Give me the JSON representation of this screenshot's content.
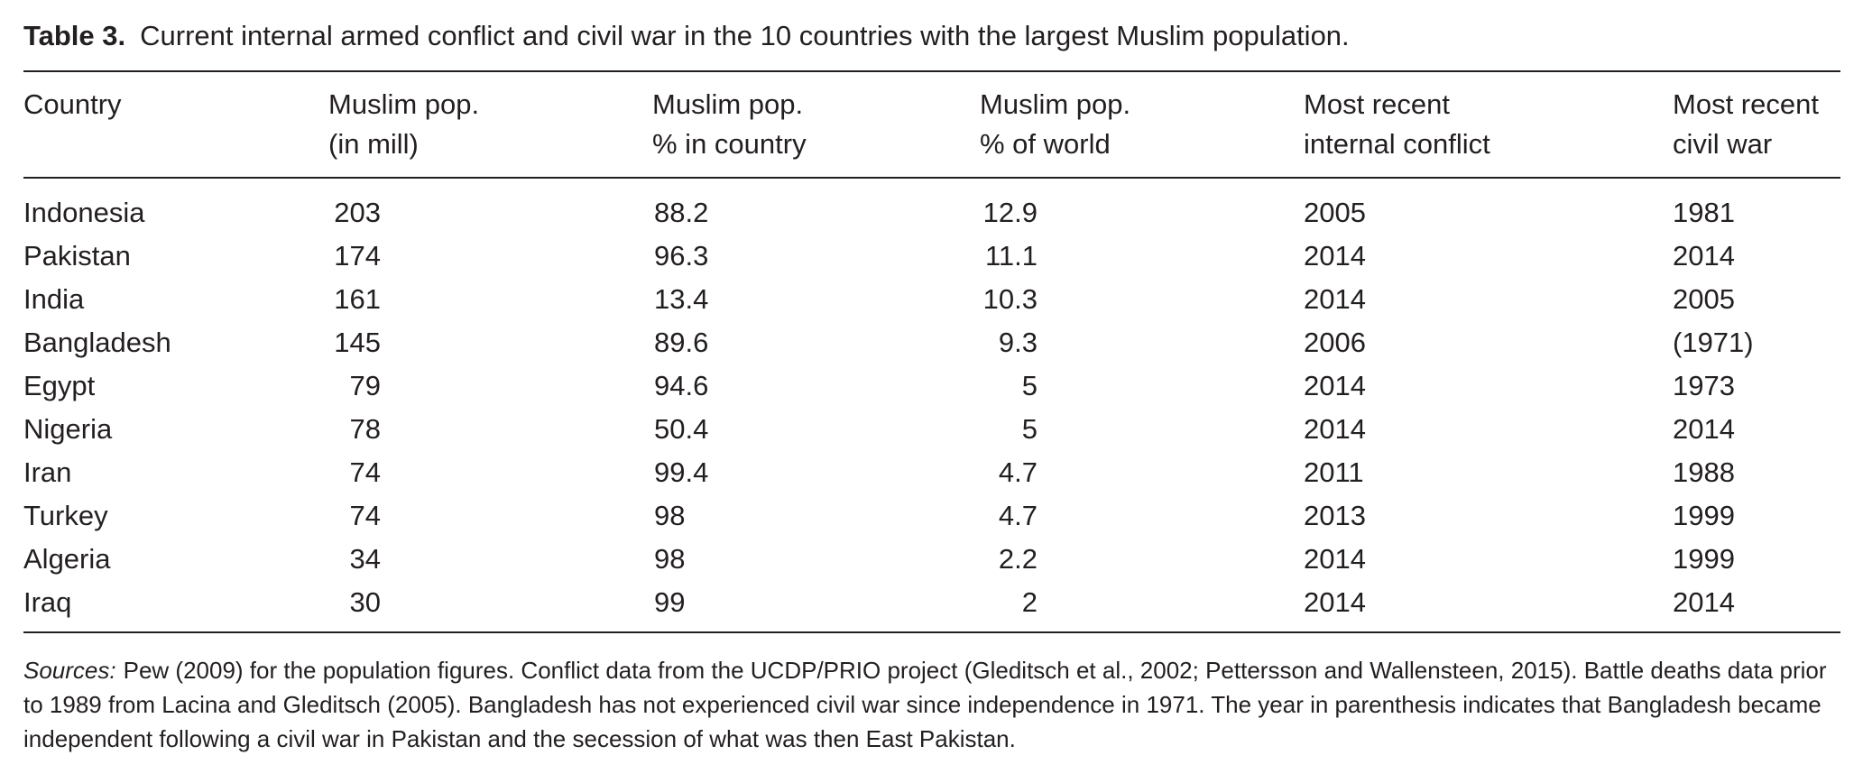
{
  "caption": {
    "label": "Table 3.",
    "text": "Current internal armed conflict and civil war in the 10 countries with the largest Muslim population."
  },
  "columns": [
    {
      "line1": "Country",
      "line2": ""
    },
    {
      "line1": "Muslim pop.",
      "line2": "(in mill)"
    },
    {
      "line1": "Muslim pop.",
      "line2": "% in country"
    },
    {
      "line1": "Muslim pop.",
      "line2": "% of world"
    },
    {
      "line1": "Most recent",
      "line2": "internal conflict"
    },
    {
      "line1": "Most recent",
      "line2": "civil war"
    }
  ],
  "rows": [
    {
      "country": "Indonesia",
      "pop_mill": "203",
      "pct_country": "88.2",
      "pct_world": "12.9",
      "internal_conflict": "2005",
      "civil_war": "1981"
    },
    {
      "country": "Pakistan",
      "pop_mill": "174",
      "pct_country": "96.3",
      "pct_world": "11.1",
      "internal_conflict": "2014",
      "civil_war": "2014"
    },
    {
      "country": "India",
      "pop_mill": "161",
      "pct_country": "13.4",
      "pct_world": "10.3",
      "internal_conflict": "2014",
      "civil_war": "2005"
    },
    {
      "country": "Bangladesh",
      "pop_mill": "145",
      "pct_country": "89.6",
      "pct_world": "9.3",
      "internal_conflict": "2006",
      "civil_war": "(1971)"
    },
    {
      "country": "Egypt",
      "pop_mill": "79",
      "pct_country": "94.6",
      "pct_world": "5",
      "internal_conflict": "2014",
      "civil_war": "1973"
    },
    {
      "country": "Nigeria",
      "pop_mill": "78",
      "pct_country": "50.4",
      "pct_world": "5",
      "internal_conflict": "2014",
      "civil_war": "2014"
    },
    {
      "country": "Iran",
      "pop_mill": "74",
      "pct_country": "99.4",
      "pct_world": "4.7",
      "internal_conflict": "2011",
      "civil_war": "1988"
    },
    {
      "country": "Turkey",
      "pop_mill": "74",
      "pct_country": "98",
      "pct_world": "4.7",
      "internal_conflict": "2013",
      "civil_war": "1999"
    },
    {
      "country": "Algeria",
      "pop_mill": "34",
      "pct_country": "98",
      "pct_world": "2.2",
      "internal_conflict": "2014",
      "civil_war": "1999"
    },
    {
      "country": "Iraq",
      "pop_mill": "30",
      "pct_country": "99",
      "pct_world": "2",
      "internal_conflict": "2014",
      "civil_war": "2014"
    }
  ],
  "notes": {
    "label": "Sources:",
    "text": "Pew (2009) for the population figures. Conflict data from the UCDP/PRIO project (Gleditsch et al., 2002; Pettersson and Wallensteen, 2015). Battle deaths data prior to 1989 from Lacina and Gleditsch (2005). Bangladesh has not experienced civil war since independence in 1971. The year in parenthesis indicates that Bangladesh became independent following a civil war in Pakistan and the secession of what was then East Pakistan."
  }
}
